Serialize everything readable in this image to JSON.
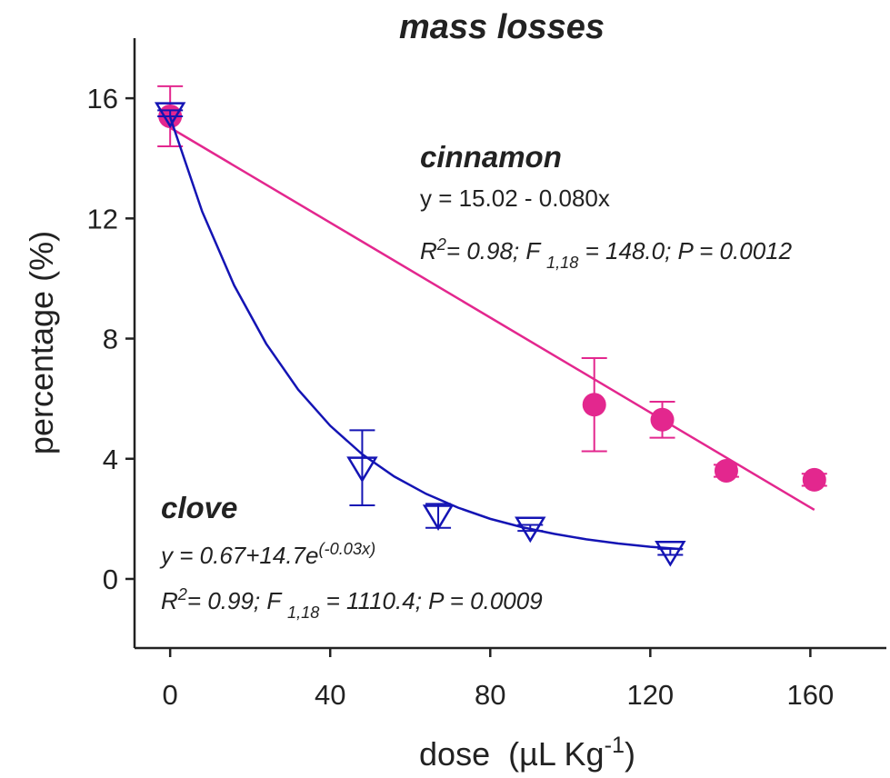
{
  "chart_data": {
    "type": "scatter",
    "title": "mass losses",
    "xlabel": {
      "parts": [
        {
          "text": "dose  (µL Kg"
        },
        {
          "text": "-1",
          "sup": true
        },
        {
          "text": ")"
        }
      ]
    },
    "ylabel": "percentage (%)",
    "xlim": [
      -8.9,
      179
    ],
    "ylim": [
      -2.3,
      18
    ],
    "xticks": [
      0,
      40,
      80,
      120,
      160
    ],
    "yticks": [
      0,
      4,
      8,
      12,
      16
    ],
    "series": [
      {
        "name": "cinnamon",
        "color": "#e3278e",
        "marker": "circle",
        "x": [
          0,
          106,
          123,
          139,
          161
        ],
        "values": [
          15.4,
          5.8,
          5.3,
          3.6,
          3.3
        ],
        "errors": [
          1.0,
          1.55,
          0.6,
          0.2,
          0.2
        ],
        "fit": {
          "x": [
            0,
            161
          ],
          "values": [
            15.02,
            2.3
          ]
        }
      },
      {
        "name": "clove",
        "color": "#1414b4",
        "marker": "triangle-down",
        "x": [
          0,
          48,
          67,
          90,
          125
        ],
        "values": [
          15.5,
          3.7,
          2.1,
          1.7,
          0.9
        ],
        "errors": [
          0.1,
          1.25,
          0.4,
          0.1,
          0.1
        ],
        "fit": {
          "x": [
            0,
            8,
            16,
            24,
            32,
            40,
            48,
            56,
            64,
            72,
            80,
            88,
            96,
            104,
            112,
            120,
            128
          ],
          "values": [
            15.37,
            12.23,
            9.77,
            7.83,
            6.3,
            5.1,
            4.15,
            3.41,
            2.83,
            2.37,
            2.0,
            1.72,
            1.5,
            1.32,
            1.18,
            1.07,
            0.99
          ]
        }
      }
    ],
    "annotations": [
      {
        "color": "#e3278e",
        "italic": false,
        "parts": [
          {
            "text": "y = 15.02 - 0.080x"
          }
        ]
      },
      {
        "color": "#e3278e",
        "italic": true,
        "parts": [
          {
            "text": "R"
          },
          {
            "text": "2",
            "sup": true
          },
          {
            "text": "= 0.98; F "
          },
          {
            "text": "1,18",
            "sub": true
          },
          {
            "text": " = 148.0; P = 0.0012"
          }
        ]
      },
      {
        "color": "#1414b4",
        "italic": true,
        "parts": [
          {
            "text": "y = 0.67+14.7e"
          },
          {
            "text": "(-0.03x)",
            "sup": true
          }
        ]
      },
      {
        "color": "#1414b4",
        "italic": true,
        "parts": [
          {
            "text": "R"
          },
          {
            "text": "2",
            "sup": true
          },
          {
            "text": "= 0.99; F "
          },
          {
            "text": "1,18",
            "sub": true
          },
          {
            "text": " = 1110.4; P = 0.0009"
          }
        ]
      }
    ]
  }
}
